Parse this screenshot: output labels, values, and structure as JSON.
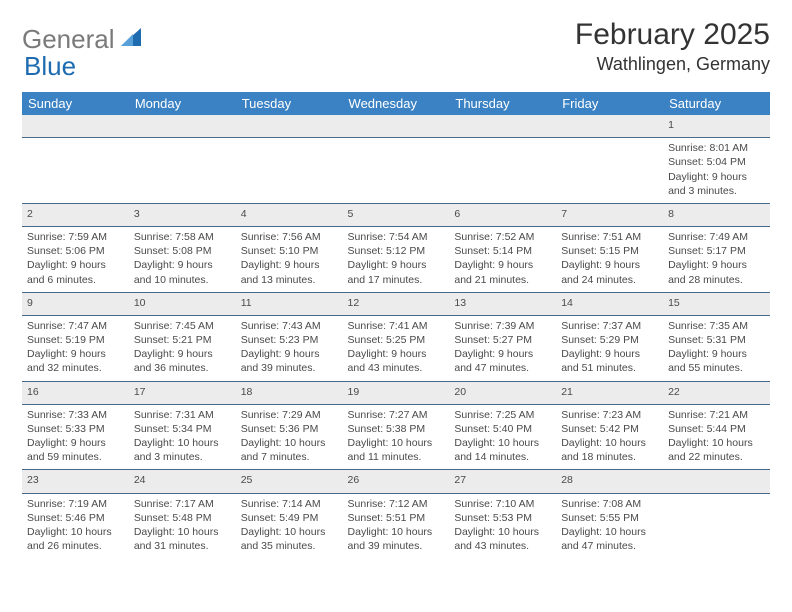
{
  "brand": {
    "gray": "General",
    "blue": "Blue"
  },
  "title": "February 2025",
  "location": "Wathlingen, Germany",
  "header_bg": "#3b82c4",
  "header_fg": "#ffffff",
  "daynum_bg": "#ececec",
  "rule_color": "#4a6a8a",
  "columns": [
    "Sunday",
    "Monday",
    "Tuesday",
    "Wednesday",
    "Thursday",
    "Friday",
    "Saturday"
  ],
  "weeks": [
    {
      "nums": [
        "",
        "",
        "",
        "",
        "",
        "",
        "1"
      ],
      "cells": [
        {},
        {},
        {},
        {},
        {},
        {},
        {
          "sunrise": "Sunrise: 8:01 AM",
          "sunset": "Sunset: 5:04 PM",
          "daylight": "Daylight: 9 hours and 3 minutes."
        }
      ]
    },
    {
      "nums": [
        "2",
        "3",
        "4",
        "5",
        "6",
        "7",
        "8"
      ],
      "cells": [
        {
          "sunrise": "Sunrise: 7:59 AM",
          "sunset": "Sunset: 5:06 PM",
          "daylight": "Daylight: 9 hours and 6 minutes."
        },
        {
          "sunrise": "Sunrise: 7:58 AM",
          "sunset": "Sunset: 5:08 PM",
          "daylight": "Daylight: 9 hours and 10 minutes."
        },
        {
          "sunrise": "Sunrise: 7:56 AM",
          "sunset": "Sunset: 5:10 PM",
          "daylight": "Daylight: 9 hours and 13 minutes."
        },
        {
          "sunrise": "Sunrise: 7:54 AM",
          "sunset": "Sunset: 5:12 PM",
          "daylight": "Daylight: 9 hours and 17 minutes."
        },
        {
          "sunrise": "Sunrise: 7:52 AM",
          "sunset": "Sunset: 5:14 PM",
          "daylight": "Daylight: 9 hours and 21 minutes."
        },
        {
          "sunrise": "Sunrise: 7:51 AM",
          "sunset": "Sunset: 5:15 PM",
          "daylight": "Daylight: 9 hours and 24 minutes."
        },
        {
          "sunrise": "Sunrise: 7:49 AM",
          "sunset": "Sunset: 5:17 PM",
          "daylight": "Daylight: 9 hours and 28 minutes."
        }
      ]
    },
    {
      "nums": [
        "9",
        "10",
        "11",
        "12",
        "13",
        "14",
        "15"
      ],
      "cells": [
        {
          "sunrise": "Sunrise: 7:47 AM",
          "sunset": "Sunset: 5:19 PM",
          "daylight": "Daylight: 9 hours and 32 minutes."
        },
        {
          "sunrise": "Sunrise: 7:45 AM",
          "sunset": "Sunset: 5:21 PM",
          "daylight": "Daylight: 9 hours and 36 minutes."
        },
        {
          "sunrise": "Sunrise: 7:43 AM",
          "sunset": "Sunset: 5:23 PM",
          "daylight": "Daylight: 9 hours and 39 minutes."
        },
        {
          "sunrise": "Sunrise: 7:41 AM",
          "sunset": "Sunset: 5:25 PM",
          "daylight": "Daylight: 9 hours and 43 minutes."
        },
        {
          "sunrise": "Sunrise: 7:39 AM",
          "sunset": "Sunset: 5:27 PM",
          "daylight": "Daylight: 9 hours and 47 minutes."
        },
        {
          "sunrise": "Sunrise: 7:37 AM",
          "sunset": "Sunset: 5:29 PM",
          "daylight": "Daylight: 9 hours and 51 minutes."
        },
        {
          "sunrise": "Sunrise: 7:35 AM",
          "sunset": "Sunset: 5:31 PM",
          "daylight": "Daylight: 9 hours and 55 minutes."
        }
      ]
    },
    {
      "nums": [
        "16",
        "17",
        "18",
        "19",
        "20",
        "21",
        "22"
      ],
      "cells": [
        {
          "sunrise": "Sunrise: 7:33 AM",
          "sunset": "Sunset: 5:33 PM",
          "daylight": "Daylight: 9 hours and 59 minutes."
        },
        {
          "sunrise": "Sunrise: 7:31 AM",
          "sunset": "Sunset: 5:34 PM",
          "daylight": "Daylight: 10 hours and 3 minutes."
        },
        {
          "sunrise": "Sunrise: 7:29 AM",
          "sunset": "Sunset: 5:36 PM",
          "daylight": "Daylight: 10 hours and 7 minutes."
        },
        {
          "sunrise": "Sunrise: 7:27 AM",
          "sunset": "Sunset: 5:38 PM",
          "daylight": "Daylight: 10 hours and 11 minutes."
        },
        {
          "sunrise": "Sunrise: 7:25 AM",
          "sunset": "Sunset: 5:40 PM",
          "daylight": "Daylight: 10 hours and 14 minutes."
        },
        {
          "sunrise": "Sunrise: 7:23 AM",
          "sunset": "Sunset: 5:42 PM",
          "daylight": "Daylight: 10 hours and 18 minutes."
        },
        {
          "sunrise": "Sunrise: 7:21 AM",
          "sunset": "Sunset: 5:44 PM",
          "daylight": "Daylight: 10 hours and 22 minutes."
        }
      ]
    },
    {
      "nums": [
        "23",
        "24",
        "25",
        "26",
        "27",
        "28",
        ""
      ],
      "cells": [
        {
          "sunrise": "Sunrise: 7:19 AM",
          "sunset": "Sunset: 5:46 PM",
          "daylight": "Daylight: 10 hours and 26 minutes."
        },
        {
          "sunrise": "Sunrise: 7:17 AM",
          "sunset": "Sunset: 5:48 PM",
          "daylight": "Daylight: 10 hours and 31 minutes."
        },
        {
          "sunrise": "Sunrise: 7:14 AM",
          "sunset": "Sunset: 5:49 PM",
          "daylight": "Daylight: 10 hours and 35 minutes."
        },
        {
          "sunrise": "Sunrise: 7:12 AM",
          "sunset": "Sunset: 5:51 PM",
          "daylight": "Daylight: 10 hours and 39 minutes."
        },
        {
          "sunrise": "Sunrise: 7:10 AM",
          "sunset": "Sunset: 5:53 PM",
          "daylight": "Daylight: 10 hours and 43 minutes."
        },
        {
          "sunrise": "Sunrise: 7:08 AM",
          "sunset": "Sunset: 5:55 PM",
          "daylight": "Daylight: 10 hours and 47 minutes."
        },
        {}
      ]
    }
  ]
}
